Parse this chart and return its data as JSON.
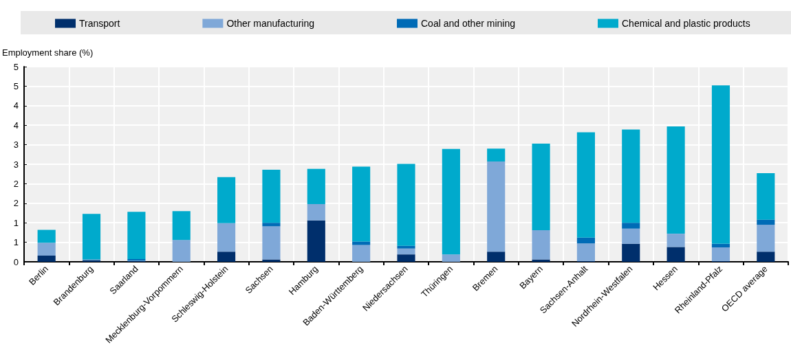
{
  "chart_data": {
    "type": "bar",
    "stacked": true,
    "ylabel": "Employment share (%)",
    "categories": [
      "Berlin",
      "Brandenburg",
      "Saarland",
      "Mecklenburg-Vorpommern",
      "Schleswig-Holstein",
      "Sachsen",
      "Hamburg",
      "Baden-Württemberg",
      "Niedersachsen",
      "Thüringen",
      "Bremen",
      "Bayern",
      "Sachsen-Anhalt",
      "Nordrhein-Westfalen",
      "Hessen",
      "Rheinland-Pfalz",
      "OECD average"
    ],
    "series": [
      {
        "name": "Transport",
        "color": "#002f6c",
        "values": [
          0.16,
          0.04,
          0.02,
          0,
          0.26,
          0.06,
          1.06,
          0,
          0.19,
          0,
          0.26,
          0.06,
          0.02,
          0.46,
          0.38,
          0.02,
          0.26
        ]
      },
      {
        "name": "Other manufacturing",
        "color": "#7fa8d8",
        "values": [
          0.33,
          0.01,
          0.01,
          0.56,
          0.73,
          0.85,
          0.42,
          0.43,
          0.15,
          0.19,
          2.31,
          0.75,
          0.45,
          0.39,
          0.34,
          0.35,
          0.69
        ]
      },
      {
        "name": "Coal and other mining",
        "color": "#006bb6",
        "values": [
          0,
          0.01,
          0.04,
          0,
          0,
          0.09,
          0,
          0.09,
          0.07,
          0,
          0,
          0,
          0.15,
          0.15,
          0,
          0.09,
          0.13
        ]
      },
      {
        "name": "Chemical and plastic products",
        "color": "#00aacc",
        "values": [
          0.33,
          1.17,
          1.21,
          0.74,
          1.18,
          1.36,
          0.9,
          1.92,
          2.1,
          2.7,
          0.33,
          2.22,
          2.7,
          2.39,
          2.75,
          4.06,
          1.19
        ]
      }
    ],
    "ylim": [
      0,
      5
    ],
    "yticks": [
      0,
      {
        "value": 0.5,
        "label": "1"
      },
      1,
      {
        "value": 1.5,
        "label": "2"
      },
      2,
      {
        "value": 2.5,
        "label": "3"
      },
      3,
      {
        "value": 3.5,
        "label": "4"
      },
      4,
      {
        "value": 4.5,
        "label": "5"
      },
      5
    ],
    "grid": true,
    "legend": "top"
  }
}
